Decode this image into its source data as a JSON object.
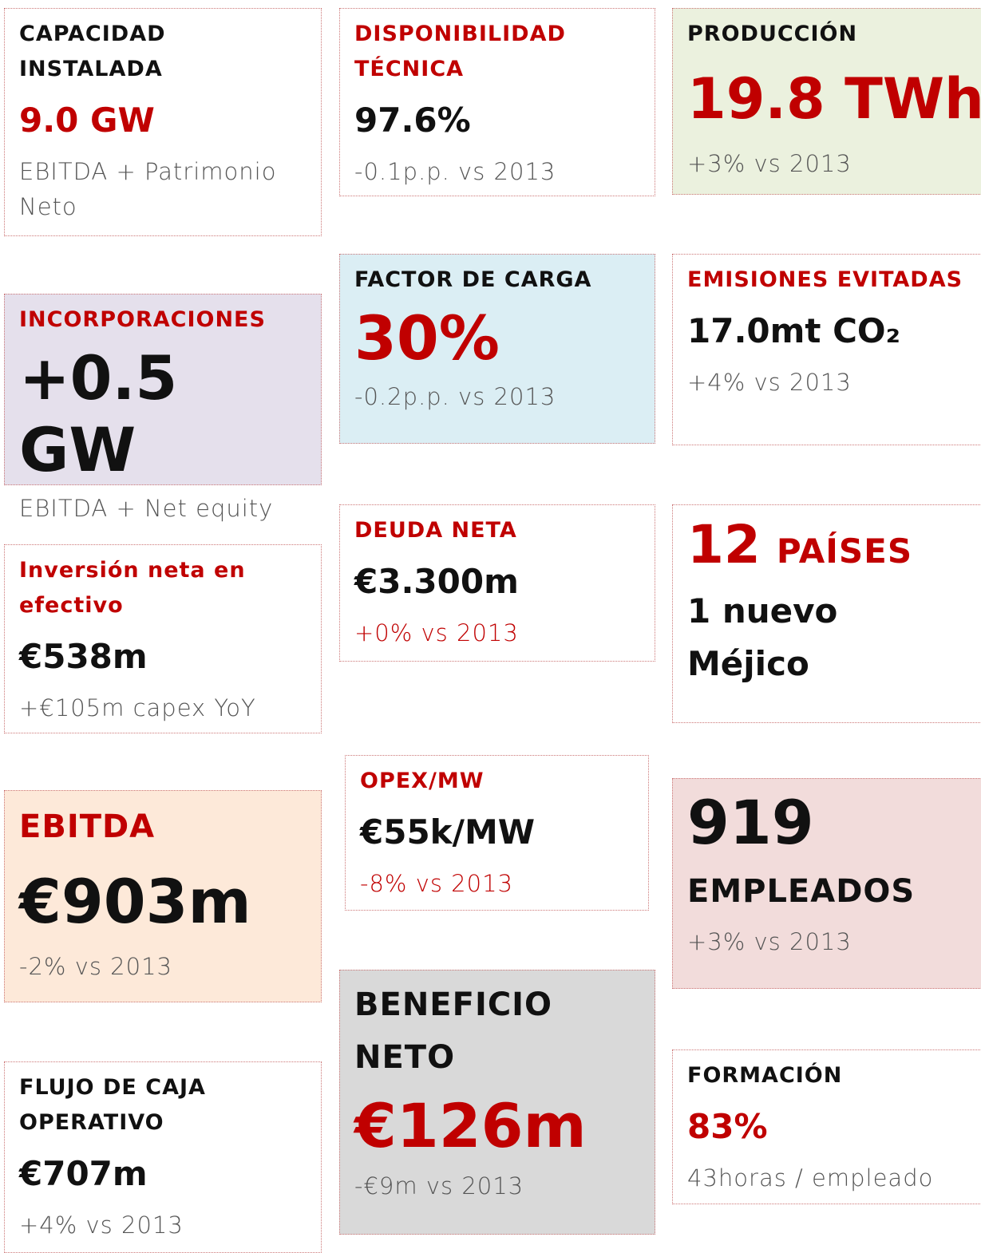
{
  "cards": [
    {
      "title": "CAPACIDAD INSTALADA",
      "value": "9.0 GW",
      "note": "EBITDA + Patrimonio Neto"
    },
    {
      "title": "DISPONIBILIDAD TÉCNICA",
      "value": "97.6%",
      "note": "-0.1p.p. vs 2013"
    },
    {
      "title": "PRODUCCIÓN",
      "value": "19.8 TWh",
      "note": "+3% vs 2013"
    },
    {
      "title": "INCORPORACIONES",
      "value": "+0.5 GW",
      "note": "EBITDA + Net equity"
    },
    {
      "title": "FACTOR DE CARGA",
      "value": "30%",
      "note": "-0.2p.p. vs 2013"
    },
    {
      "title": "EMISIONES EVITADAS",
      "value": "17.0mt CO₂",
      "note": "+4% vs 2013"
    },
    {
      "title": "Inversión neta en efectivo",
      "value": "€538m",
      "note": "+€105m capex YoY"
    },
    {
      "title": "DEUDA NETA",
      "value": "€3.300m",
      "note": "+0% vs 2013"
    },
    {
      "value": "12",
      "title": "PAÍSES",
      "note": "1 nuevo Méjico"
    },
    {
      "title": "OPEX/MW",
      "value": "€55k/MW",
      "note": "-8% vs 2013"
    },
    {
      "title": "EBITDA",
      "value": "€903m",
      "note": "-2% vs 2013"
    },
    {
      "value": "919",
      "title": "EMPLEADOS",
      "note": "+3% vs 2013"
    },
    {
      "title": "BENEFICIO NETO",
      "value": "€126m",
      "note": "-€9m vs 2013"
    },
    {
      "title": "FLUJO DE CAJA OPERATIVO",
      "value": "€707m",
      "note": "+4% vs 2013"
    },
    {
      "title": "FORMACIÓN",
      "value": "83%",
      "note": "43horas / empleado"
    }
  ]
}
